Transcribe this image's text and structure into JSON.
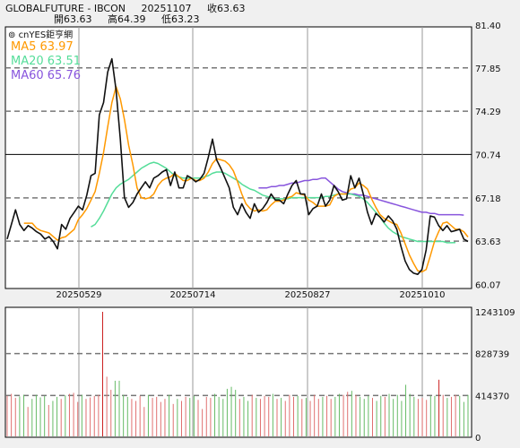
{
  "header": {
    "symbol": "GLOBALFUTURE - IBCON",
    "date": "20251107",
    "close_label": "收63.63",
    "open_label": "開63.63",
    "high_label": "高64.39",
    "low_label": "低63.23"
  },
  "brand": "cnYES鉅亨網",
  "colors": {
    "close": "#111111",
    "ma5": "#ff9900",
    "ma20": "#55dd99",
    "ma60": "#8855dd",
    "vol_up": "#e07070",
    "vol_down": "#66bb66",
    "vol_highlight": "#cc2222"
  },
  "legend": [
    {
      "label": "MA5 63.97",
      "color": "#ff9900"
    },
    {
      "label": "MA20 63.51",
      "color": "#55dd99"
    },
    {
      "label": "MA60 65.76",
      "color": "#8855dd"
    }
  ],
  "chart_data": [
    {
      "type": "line",
      "x_ticks": [
        "20250529",
        "20250714",
        "20250827",
        "20251010"
      ],
      "y_ticks": [
        "81.40",
        "77.85",
        "74.29",
        "70.74",
        "67.18",
        "63.63",
        "60.07"
      ],
      "ylim": [
        60.07,
        81.4
      ],
      "grid": true,
      "series": [
        {
          "name": "Close",
          "values": [
            63.8,
            65.0,
            66.2,
            65.0,
            64.5,
            64.9,
            64.7,
            64.4,
            64.2,
            63.8,
            64.0,
            63.6,
            63.0,
            65.0,
            64.6,
            65.5,
            66.0,
            66.5,
            66.2,
            67.4,
            69.0,
            69.2,
            74.0,
            75.0,
            77.5,
            78.6,
            76.0,
            72.0,
            67.2,
            66.4,
            66.8,
            67.5,
            68.0,
            68.5,
            68.0,
            68.8,
            69.0,
            69.3,
            69.5,
            68.2,
            69.3,
            68.0,
            68.0,
            69.0,
            68.8,
            68.5,
            68.7,
            69.2,
            70.5,
            72.0,
            70.3,
            69.6,
            68.8,
            68.0,
            66.4,
            65.8,
            66.7,
            66.0,
            65.5,
            66.7,
            66.0,
            66.3,
            66.8,
            67.5,
            67.0,
            67.0,
            66.7,
            67.5,
            68.2,
            68.6,
            67.5,
            67.5,
            65.8,
            66.3,
            66.5,
            67.5,
            66.5,
            67.0,
            68.2,
            67.7,
            67.0,
            67.1,
            69.0,
            68.0,
            68.8,
            67.5,
            66.0,
            65.0,
            65.9,
            65.6,
            65.2,
            65.7,
            65.3,
            64.6,
            63.2,
            62.0,
            61.3,
            61.0,
            60.9,
            61.3,
            62.9,
            65.7,
            65.6,
            64.9,
            64.5,
            64.9,
            64.4,
            64.5,
            64.6,
            63.8,
            63.6
          ],
          "color": "#111111"
        },
        {
          "name": "MA5",
          "values": [
            null,
            null,
            null,
            null,
            65.1,
            65.1,
            65.1,
            64.7,
            64.5,
            64.4,
            64.3,
            64.0,
            63.7,
            63.9,
            64.0,
            64.3,
            64.6,
            65.4,
            65.8,
            66.3,
            67.0,
            67.7,
            69.2,
            70.9,
            73.0,
            75.0,
            76.3,
            75.3,
            73.6,
            71.5,
            69.9,
            68.0,
            67.2,
            67.1,
            67.2,
            67.5,
            68.2,
            68.6,
            68.8,
            68.9,
            69.2,
            68.9,
            68.6,
            68.6,
            68.8,
            68.6,
            68.6,
            68.8,
            69.3,
            70.0,
            70.4,
            70.3,
            70.2,
            69.9,
            69.4,
            68.5,
            67.5,
            66.7,
            66.3,
            66.1,
            66.2,
            66.1,
            66.2,
            66.6,
            66.9,
            66.9,
            67.0,
            67.2,
            67.3,
            67.6,
            67.5,
            67.4,
            67.0,
            66.8,
            66.5,
            66.5,
            66.5,
            66.6,
            67.3,
            67.5,
            67.5,
            67.5,
            67.9,
            68.0,
            68.4,
            68.2,
            67.9,
            67.1,
            66.4,
            65.8,
            65.5,
            65.3,
            65.1,
            65.0,
            64.3,
            63.4,
            62.5,
            61.8,
            61.2,
            61.1,
            61.3,
            62.4,
            63.6,
            64.4,
            65.1,
            65.2,
            64.9,
            64.6,
            64.6,
            64.4,
            63.97
          ],
          "color": "#ff9900"
        },
        {
          "name": "MA20",
          "values": [
            null,
            null,
            null,
            null,
            null,
            null,
            null,
            null,
            null,
            null,
            null,
            null,
            null,
            null,
            null,
            null,
            null,
            null,
            null,
            null,
            64.8,
            65.0,
            65.5,
            66.1,
            66.8,
            67.5,
            68.0,
            68.3,
            68.5,
            68.7,
            69.0,
            69.3,
            69.6,
            69.8,
            70.0,
            70.1,
            70.0,
            69.8,
            69.6,
            69.3,
            69.0,
            68.9,
            68.8,
            68.8,
            68.8,
            68.8,
            68.8,
            68.9,
            69.0,
            69.2,
            69.3,
            69.3,
            69.2,
            69.0,
            68.8,
            68.6,
            68.3,
            68.1,
            67.9,
            67.8,
            67.6,
            67.4,
            67.3,
            67.2,
            67.1,
            67.1,
            67.1,
            67.1,
            67.2,
            67.2,
            67.2,
            67.2,
            67.2,
            67.2,
            67.2,
            67.2,
            67.3,
            67.3,
            67.4,
            67.5,
            67.5,
            67.5,
            67.5,
            67.4,
            67.3,
            67.1,
            66.8,
            66.4,
            66.0,
            65.6,
            65.1,
            64.7,
            64.4,
            64.2,
            64.0,
            63.9,
            63.8,
            63.7,
            63.6,
            63.6,
            63.6,
            63.6,
            63.6,
            63.6,
            63.6,
            63.5,
            63.5,
            63.51
          ],
          "color": "#55dd99"
        },
        {
          "name": "MA60",
          "values": [
            null,
            null,
            null,
            null,
            null,
            null,
            null,
            null,
            null,
            null,
            null,
            null,
            null,
            null,
            null,
            null,
            null,
            null,
            null,
            null,
            null,
            null,
            null,
            null,
            null,
            null,
            null,
            null,
            null,
            null,
            null,
            null,
            null,
            null,
            null,
            null,
            null,
            null,
            null,
            null,
            null,
            null,
            null,
            null,
            null,
            null,
            null,
            null,
            null,
            null,
            null,
            null,
            null,
            null,
            null,
            null,
            null,
            null,
            null,
            null,
            68.0,
            68.0,
            68.0,
            68.1,
            68.1,
            68.2,
            68.2,
            68.3,
            68.4,
            68.4,
            68.5,
            68.6,
            68.6,
            68.7,
            68.7,
            68.8,
            68.8,
            68.5,
            68.2,
            67.9,
            67.7,
            67.6,
            67.5,
            67.5,
            67.4,
            67.4,
            67.3,
            67.2,
            67.1,
            67.0,
            66.9,
            66.8,
            66.7,
            66.6,
            66.5,
            66.4,
            66.3,
            66.2,
            66.1,
            66.0,
            66.0,
            65.9,
            65.9,
            65.8,
            65.8,
            65.8,
            65.8,
            65.8,
            65.8,
            65.76
          ],
          "color": "#8855dd"
        }
      ]
    },
    {
      "type": "bar",
      "title": "",
      "y_ticks": [
        "1243109",
        "828739",
        "414370",
        "0"
      ],
      "ylim": [
        0,
        1243109
      ],
      "values": [
        410000,
        430000,
        390000,
        405000,
        420000,
        300000,
        380000,
        420000,
        395000,
        410000,
        320000,
        360000,
        400000,
        380000,
        415000,
        430000,
        440000,
        350000,
        420000,
        380000,
        395000,
        410000,
        420000,
        1243109,
        600000,
        470000,
        560000,
        560000,
        420000,
        400000,
        380000,
        360000,
        410000,
        300000,
        420000,
        390000,
        400000,
        350000,
        380000,
        420000,
        330000,
        380000,
        360000,
        400000,
        390000,
        410000,
        370000,
        280000,
        400000,
        390000,
        430000,
        400000,
        380000,
        480000,
        500000,
        470000,
        380000,
        400000,
        360000,
        420000,
        390000,
        380000,
        410000,
        400000,
        430000,
        380000,
        390000,
        360000,
        420000,
        400000,
        410000,
        380000,
        390000,
        360000,
        420000,
        380000,
        400000,
        410000,
        380000,
        400000,
        430000,
        420000,
        450000,
        460000,
        420000,
        400000,
        380000,
        410000,
        390000,
        360000,
        410000,
        400000,
        430000,
        380000,
        420000,
        360000,
        520000,
        430000,
        400000,
        380000,
        390000,
        370000,
        410000,
        410000,
        570000,
        420000,
        390000,
        400000,
        420000,
        410000,
        350000,
        420000
      ],
      "highlight_index": [
        23,
        104
      ]
    }
  ]
}
